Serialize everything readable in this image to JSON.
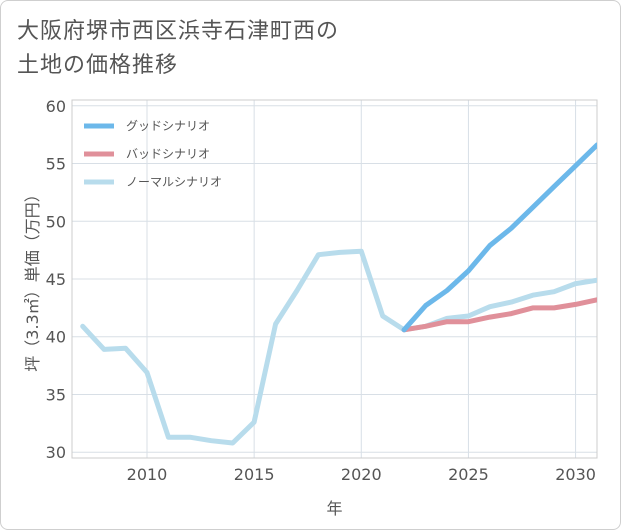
{
  "title_lines": [
    "大阪府堺市西区浜寺石津町西の",
    "土地の価格推移"
  ],
  "chart_data": {
    "type": "line",
    "title": "大阪府堺市西区浜寺石津町西の土地の価格推移",
    "xlabel": "年",
    "ylabel": "坪（3.3㎡）単価（万円）",
    "xlim": [
      2006.5,
      2031
    ],
    "ylim": [
      29.5,
      60.5
    ],
    "xticks": [
      2010,
      2015,
      2020,
      2025,
      2030
    ],
    "yticks": [
      30,
      35,
      40,
      45,
      50,
      55,
      60
    ],
    "grid": true,
    "legend_position": "top-left",
    "series": [
      {
        "name": "グッドシナリオ",
        "color": "#6cb8ea",
        "x": [
          2022,
          2023,
          2024,
          2025,
          2026,
          2027,
          2028,
          2029,
          2030,
          2031
        ],
        "y": [
          40.6,
          42.7,
          44.0,
          45.7,
          47.9,
          49.4,
          51.2,
          53.0,
          54.8,
          56.6
        ]
      },
      {
        "name": "バッドシナリオ",
        "color": "#e0909a",
        "x": [
          2022,
          2023,
          2024,
          2025,
          2026,
          2027,
          2028,
          2029,
          2030,
          2031
        ],
        "y": [
          40.6,
          40.9,
          41.3,
          41.3,
          41.7,
          42.0,
          42.5,
          42.5,
          42.8,
          43.2
        ]
      },
      {
        "name": "ノーマルシナリオ",
        "color": "#b8dcec",
        "x": [
          2007,
          2008,
          2009,
          2010,
          2011,
          2012,
          2013,
          2014,
          2015,
          2016,
          2017,
          2018,
          2019,
          2020,
          2021,
          2022,
          2023,
          2024,
          2025,
          2026,
          2027,
          2028,
          2029,
          2030,
          2031
        ],
        "y": [
          40.9,
          38.9,
          39.0,
          36.9,
          31.3,
          31.3,
          31.0,
          30.8,
          32.6,
          41.1,
          44.0,
          47.1,
          47.3,
          47.4,
          41.8,
          40.6,
          40.9,
          41.6,
          41.8,
          42.6,
          43.0,
          43.6,
          43.9,
          44.6,
          44.9
        ]
      }
    ]
  }
}
